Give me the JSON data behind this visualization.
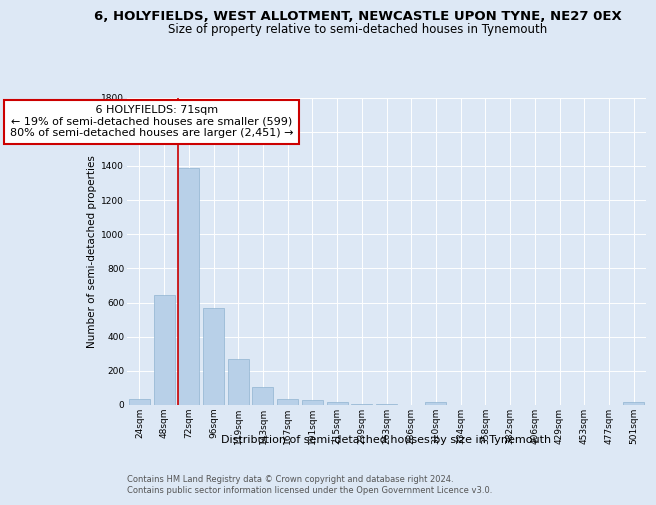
{
  "title": "6, HOLYFIELDS, WEST ALLOTMENT, NEWCASTLE UPON TYNE, NE27 0EX",
  "subtitle": "Size of property relative to semi-detached houses in Tynemouth",
  "xlabel": "Distribution of semi-detached houses by size in Tynemouth",
  "ylabel": "Number of semi-detached properties",
  "categories": [
    "24sqm",
    "48sqm",
    "72sqm",
    "96sqm",
    "119sqm",
    "143sqm",
    "167sqm",
    "191sqm",
    "215sqm",
    "239sqm",
    "263sqm",
    "286sqm",
    "310sqm",
    "334sqm",
    "358sqm",
    "382sqm",
    "406sqm",
    "429sqm",
    "453sqm",
    "477sqm",
    "501sqm"
  ],
  "values": [
    35,
    645,
    1385,
    565,
    270,
    105,
    38,
    28,
    15,
    8,
    5,
    2,
    18,
    2,
    0,
    0,
    0,
    0,
    0,
    0,
    15
  ],
  "bar_color": "#b8d0e8",
  "bar_edge_color": "#90b4d0",
  "annotation_title": "6 HOLYFIELDS: 71sqm",
  "annotation_line1": "← 19% of semi-detached houses are smaller (599)",
  "annotation_line2": "80% of semi-detached houses are larger (2,451) →",
  "annotation_box_color": "#ffffff",
  "annotation_box_edge_color": "#cc0000",
  "vline_color": "#cc0000",
  "vline_bin_index": 2,
  "ylim": [
    0,
    1800
  ],
  "yticks": [
    0,
    200,
    400,
    600,
    800,
    1000,
    1200,
    1400,
    1600,
    1800
  ],
  "footer_line1": "Contains HM Land Registry data © Crown copyright and database right 2024.",
  "footer_line2": "Contains public sector information licensed under the Open Government Licence v3.0.",
  "background_color": "#dde8f5",
  "plot_bg_color": "#dde8f5",
  "title_fontsize": 9.5,
  "subtitle_fontsize": 8.5,
  "xlabel_fontsize": 8,
  "ylabel_fontsize": 7.5,
  "tick_fontsize": 6.5,
  "annotation_fontsize": 8,
  "footer_fontsize": 6
}
